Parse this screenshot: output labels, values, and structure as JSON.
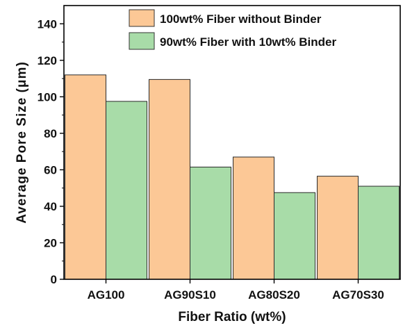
{
  "chart_data": {
    "type": "bar",
    "categories": [
      "AG100",
      "AG90S10",
      "AG80S20",
      "AG70S30"
    ],
    "series": [
      {
        "name": "100wt% Fiber without Binder",
        "values": [
          112,
          109.5,
          67,
          56.5
        ],
        "color": "#fcc896"
      },
      {
        "name": "90wt% Fiber with 10wt% Binder",
        "values": [
          97.5,
          61.5,
          47.5,
          51
        ],
        "color": "#a8dca8"
      }
    ],
    "title": "",
    "xlabel": "Fiber Ratio (wt%)",
    "ylabel": "Average Pore Size (μm)",
    "ylim": [
      0,
      150
    ],
    "yticks": [
      0,
      20,
      40,
      60,
      80,
      100,
      120,
      140
    ],
    "grid": false,
    "legend_position": "top-right"
  }
}
